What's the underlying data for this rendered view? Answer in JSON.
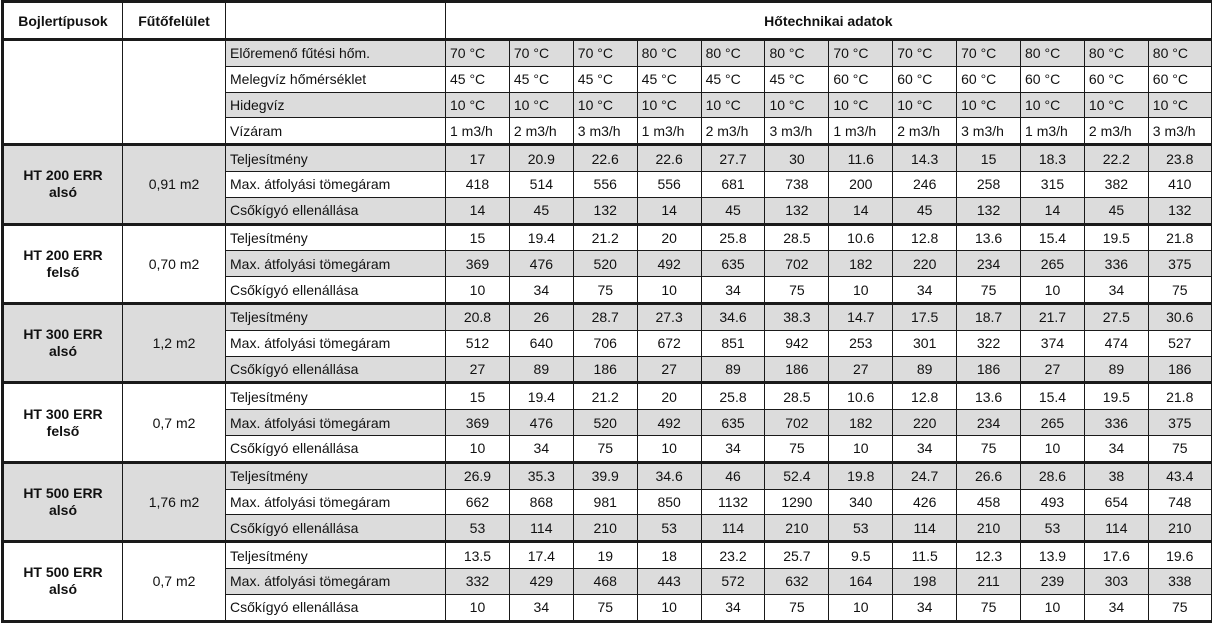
{
  "header": {
    "col_boiler": "Bojlertípusok",
    "col_area": "Fűtőfelület",
    "col_data": "Hőtechnikai adatok"
  },
  "params": [
    {
      "label": "Előremenő fűtési hőm.",
      "values": [
        "70 °C",
        "70 °C",
        "70 °C",
        "80 °C",
        "80 °C",
        "80 °C",
        "70 °C",
        "70 °C",
        "70 °C",
        "80 °C",
        "80 °C",
        "80 °C"
      ]
    },
    {
      "label": "Melegvíz hőmérséklet",
      "values": [
        "45 °C",
        "45 °C",
        "45 °C",
        "45 °C",
        "45 °C",
        "45 °C",
        "60 °C",
        "60 °C",
        "60 °C",
        "60 °C",
        "60 °C",
        "60 °C"
      ]
    },
    {
      "label": "Hidegvíz",
      "values": [
        "10 °C",
        "10 °C",
        "10 °C",
        "10 °C",
        "10 °C",
        "10 °C",
        "10 °C",
        "10 °C",
        "10 °C",
        "10 °C",
        "10 °C",
        "10 °C"
      ]
    },
    {
      "label": "Vízáram",
      "values": [
        "1 m3/h",
        "2 m3/h",
        "3 m3/h",
        "1 m3/h",
        "2 m3/h",
        "3 m3/h",
        "1 m3/h",
        "2 m3/h",
        "3 m3/h",
        "1 m3/h",
        "2 m3/h",
        "3 m3/h"
      ]
    }
  ],
  "boilers": [
    {
      "name": "HT 200 ERR alsó",
      "area": "0,91 m2",
      "rows": [
        {
          "label": "Teljesítmény",
          "values": [
            "17",
            "20.9",
            "22.6",
            "22.6",
            "27.7",
            "30",
            "11.6",
            "14.3",
            "15",
            "18.3",
            "22.2",
            "23.8"
          ]
        },
        {
          "label": "Max. átfolyási tömegáram",
          "values": [
            "418",
            "514",
            "556",
            "556",
            "681",
            "738",
            "200",
            "246",
            "258",
            "315",
            "382",
            "410"
          ]
        },
        {
          "label": "Csőkígyó ellenállása",
          "values": [
            "14",
            "45",
            "132",
            "14",
            "45",
            "132",
            "14",
            "45",
            "132",
            "14",
            "45",
            "132"
          ]
        }
      ]
    },
    {
      "name": "HT 200 ERR felső",
      "area": "0,70 m2",
      "rows": [
        {
          "label": "Teljesítmény",
          "values": [
            "15",
            "19.4",
            "21.2",
            "20",
            "25.8",
            "28.5",
            "10.6",
            "12.8",
            "13.6",
            "15.4",
            "19.5",
            "21.8"
          ]
        },
        {
          "label": "Max. átfolyási tömegáram",
          "values": [
            "369",
            "476",
            "520",
            "492",
            "635",
            "702",
            "182",
            "220",
            "234",
            "265",
            "336",
            "375"
          ]
        },
        {
          "label": "Csőkígyó ellenállása",
          "values": [
            "10",
            "34",
            "75",
            "10",
            "34",
            "75",
            "10",
            "34",
            "75",
            "10",
            "34",
            "75"
          ]
        }
      ]
    },
    {
      "name": "HT 300 ERR alsó",
      "area": "1,2 m2",
      "rows": [
        {
          "label": "Teljesítmény",
          "values": [
            "20.8",
            "26",
            "28.7",
            "27.3",
            "34.6",
            "38.3",
            "14.7",
            "17.5",
            "18.7",
            "21.7",
            "27.5",
            "30.6"
          ]
        },
        {
          "label": "Max. átfolyási tömegáram",
          "values": [
            "512",
            "640",
            "706",
            "672",
            "851",
            "942",
            "253",
            "301",
            "322",
            "374",
            "474",
            "527"
          ]
        },
        {
          "label": "Csőkígyó ellenállása",
          "values": [
            "27",
            "89",
            "186",
            "27",
            "89",
            "186",
            "27",
            "89",
            "186",
            "27",
            "89",
            "186"
          ]
        }
      ]
    },
    {
      "name": "HT 300 ERR felső",
      "area": "0,7 m2",
      "rows": [
        {
          "label": "Teljesítmény",
          "values": [
            "15",
            "19.4",
            "21.2",
            "20",
            "25.8",
            "28.5",
            "10.6",
            "12.8",
            "13.6",
            "15.4",
            "19.5",
            "21.8"
          ]
        },
        {
          "label": "Max. átfolyási tömegáram",
          "values": [
            "369",
            "476",
            "520",
            "492",
            "635",
            "702",
            "182",
            "220",
            "234",
            "265",
            "336",
            "375"
          ]
        },
        {
          "label": "Csőkígyó ellenállása",
          "values": [
            "10",
            "34",
            "75",
            "10",
            "34",
            "75",
            "10",
            "34",
            "75",
            "10",
            "34",
            "75"
          ]
        }
      ]
    },
    {
      "name": "HT 500 ERR alsó",
      "area": "1,76 m2",
      "rows": [
        {
          "label": "Teljesítmény",
          "values": [
            "26.9",
            "35.3",
            "39.9",
            "34.6",
            "46",
            "52.4",
            "19.8",
            "24.7",
            "26.6",
            "28.6",
            "38",
            "43.4"
          ]
        },
        {
          "label": "Max. átfolyási tömegáram",
          "values": [
            "662",
            "868",
            "981",
            "850",
            "1132",
            "1290",
            "340",
            "426",
            "458",
            "493",
            "654",
            "748"
          ]
        },
        {
          "label": "Csőkígyó ellenállása",
          "values": [
            "53",
            "114",
            "210",
            "53",
            "114",
            "210",
            "53",
            "114",
            "210",
            "53",
            "114",
            "210"
          ]
        }
      ]
    },
    {
      "name": "HT 500 ERR alsó",
      "area": "0,7 m2",
      "rows": [
        {
          "label": "Teljesítmény",
          "values": [
            "13.5",
            "17.4",
            "19",
            "18",
            "23.2",
            "25.7",
            "9.5",
            "11.5",
            "12.3",
            "13.9",
            "17.6",
            "19.6"
          ]
        },
        {
          "label": "Max. átfolyási tömegáram",
          "values": [
            "332",
            "429",
            "468",
            "443",
            "572",
            "632",
            "164",
            "198",
            "211",
            "239",
            "303",
            "338"
          ]
        },
        {
          "label": "Csőkígyó ellenállása",
          "values": [
            "10",
            "34",
            "75",
            "10",
            "34",
            "75",
            "10",
            "34",
            "75",
            "10",
            "34",
            "75"
          ]
        }
      ]
    }
  ],
  "colors": {
    "shade": "#dcdcdc",
    "border": "#1a1a1a"
  }
}
